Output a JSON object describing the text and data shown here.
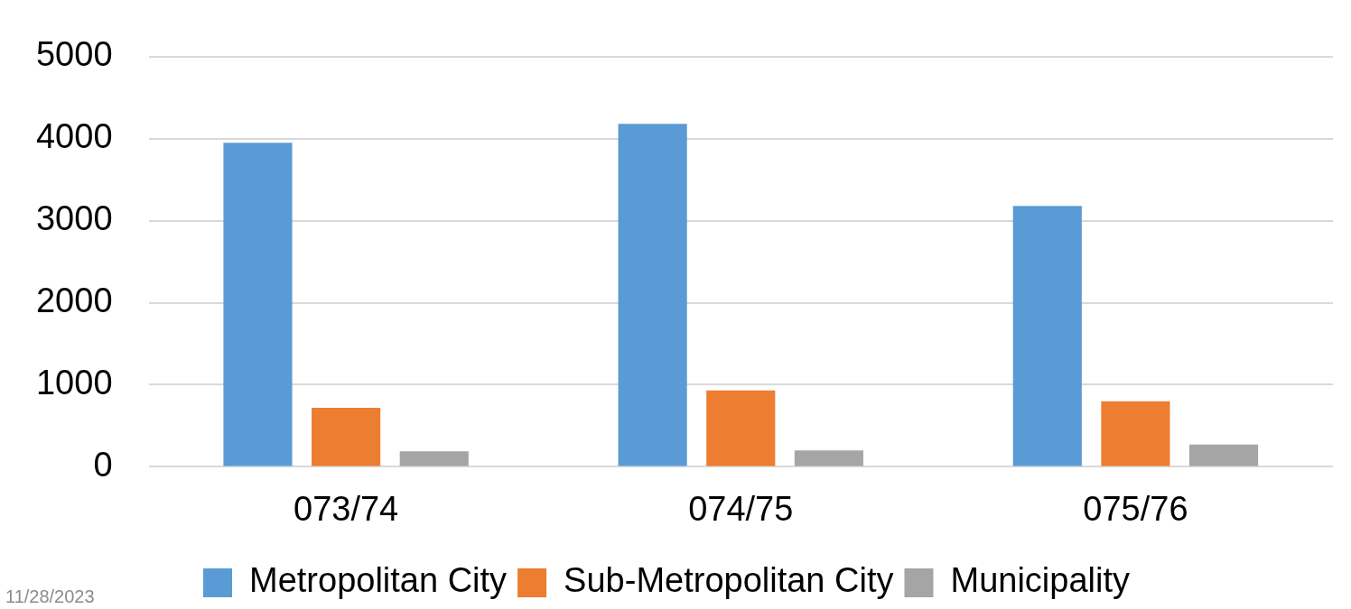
{
  "chart_data": {
    "type": "bar",
    "categories": [
      "073/74",
      "074/75",
      "075/76"
    ],
    "series": [
      {
        "name": "Metropolitan City",
        "color": "#5b9bd5",
        "values": [
          3950,
          4180,
          3180
        ]
      },
      {
        "name": "Sub-Metropolitan City",
        "color": "#ed7d31",
        "values": [
          720,
          930,
          800
        ]
      },
      {
        "name": "Municipality",
        "color": "#a5a5a5",
        "values": [
          190,
          200,
          270
        ]
      }
    ],
    "ylim": [
      0,
      5000
    ],
    "yticks": [
      0,
      1000,
      2000,
      3000,
      4000,
      5000
    ],
    "grid": "y",
    "legend": "bottom",
    "annotations": [
      "11/28/2023"
    ]
  }
}
